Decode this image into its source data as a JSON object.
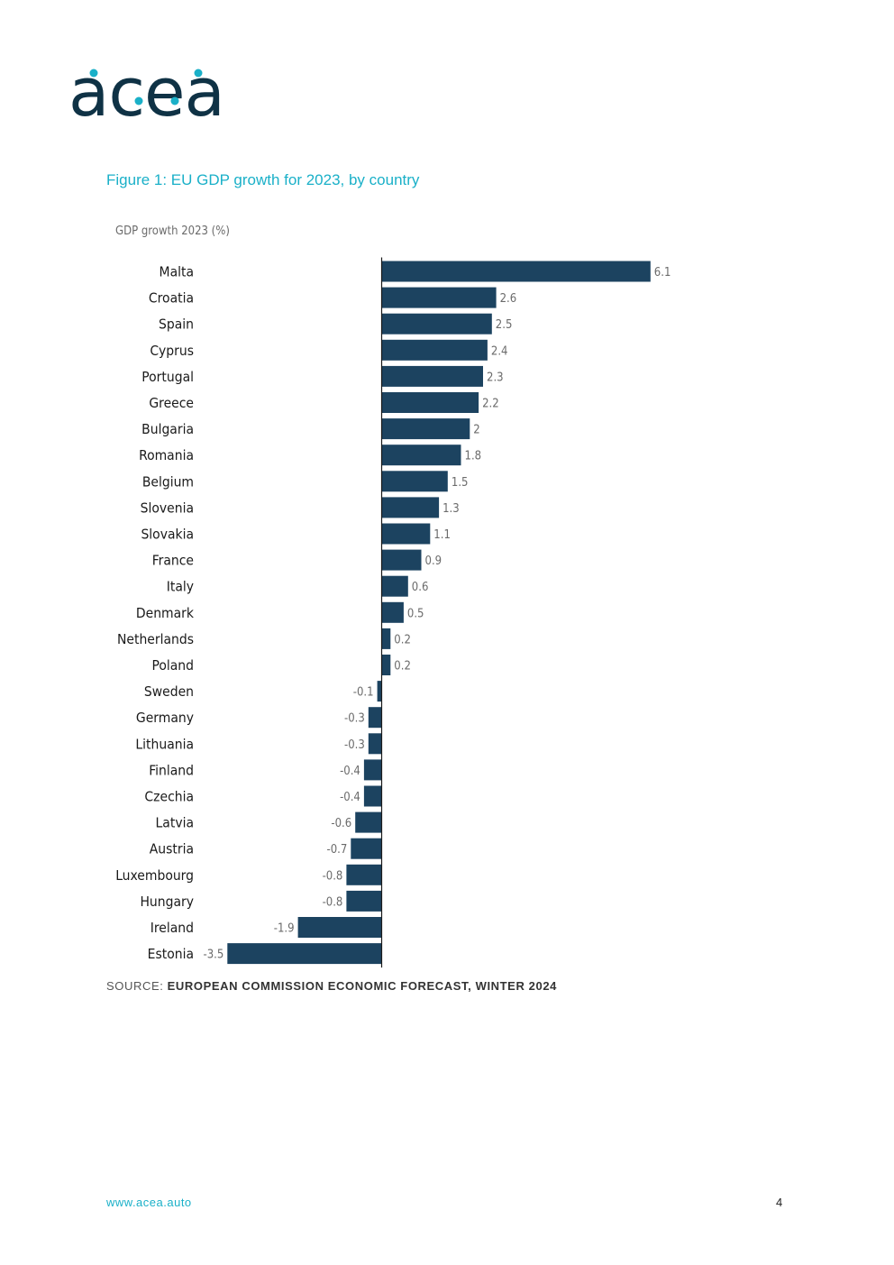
{
  "logo": {
    "text": "acea",
    "text_color": "#0f3245",
    "dot_color": "#1ab0c8"
  },
  "figure": {
    "title": "Figure 1: EU GDP growth for 2023, by country"
  },
  "chart_data": {
    "type": "bar",
    "orientation": "horizontal",
    "title": "Figure 1: EU GDP growth for 2023, by country",
    "ylabel": "GDP growth 2023 (%)",
    "xlabel": "",
    "xlim": [
      -3.5,
      6.1
    ],
    "grid": false,
    "bar_color": "#1c4360",
    "categories": [
      "Malta",
      "Croatia",
      "Spain",
      "Cyprus",
      "Portugal",
      "Greece",
      "Bulgaria",
      "Romania",
      "Belgium",
      "Slovenia",
      "Slovakia",
      "France",
      "Italy",
      "Denmark",
      "Netherlands",
      "Poland",
      "Sweden",
      "Germany",
      "Lithuania",
      "Finland",
      "Czechia",
      "Latvia",
      "Austria",
      "Luxembourg",
      "Hungary",
      "Ireland",
      "Estonia"
    ],
    "values": [
      6.1,
      2.6,
      2.5,
      2.4,
      2.3,
      2.2,
      2,
      1.8,
      1.5,
      1.3,
      1.1,
      0.9,
      0.6,
      0.5,
      0.2,
      0.2,
      -0.1,
      -0.3,
      -0.3,
      -0.4,
      -0.4,
      -0.6,
      -0.7,
      -0.8,
      -0.8,
      -1.9,
      -3.5
    ],
    "value_labels": [
      "6.1",
      "2.6",
      "2.5",
      "2.4",
      "2.3",
      "2.2",
      "2",
      "1.8",
      "1.5",
      "1.3",
      "1.1",
      "0.9",
      "0.6",
      "0.5",
      "0.2",
      "0.2",
      "-0.1",
      "-0.3",
      "-0.3",
      "-0.4",
      "-0.4",
      "-0.6",
      "-0.7",
      "-0.8",
      "-0.8",
      "-1.9",
      "-3.5"
    ]
  },
  "source": {
    "prefix": "SOURCE: ",
    "text": "EUROPEAN COMMISSION ECONOMIC FORECAST, WINTER 2024"
  },
  "footer": {
    "url": "www.acea.auto",
    "page_number": "4"
  }
}
